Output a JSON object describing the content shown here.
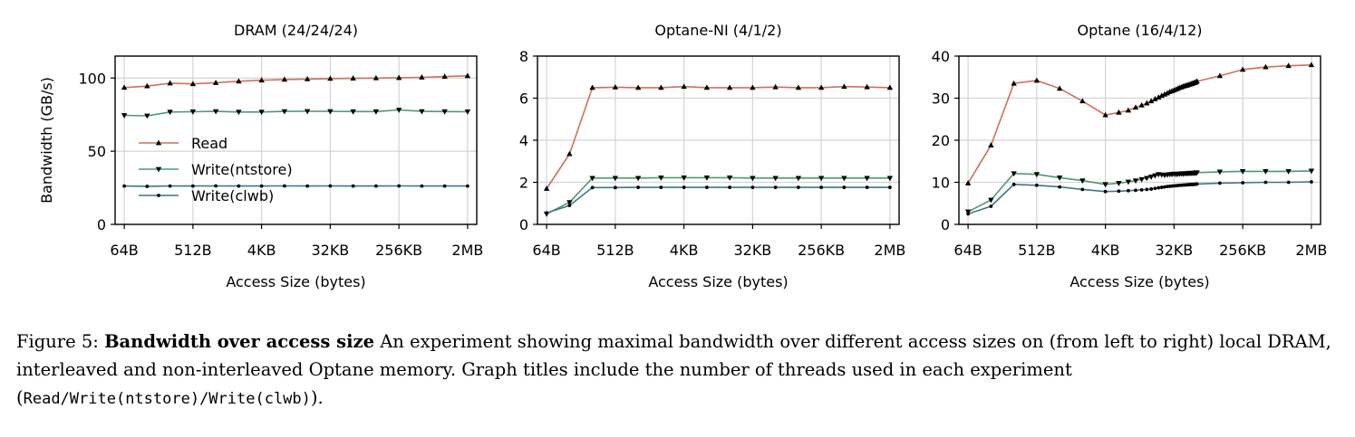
{
  "chart_data": [
    {
      "type": "line",
      "title": "DRAM (24/24/24)",
      "xlabel": "Access Size (bytes)",
      "ylabel": "Bandwidth (GB/s)",
      "x_scale": "log2",
      "x_ticks": [
        "64B",
        "512B",
        "4KB",
        "32KB",
        "256KB",
        "2MB"
      ],
      "ylim": [
        0,
        115
      ],
      "y_ticks": [
        0,
        50,
        100
      ],
      "grid": true,
      "legend": "middle-left",
      "x": [
        "64B",
        "128B",
        "256B",
        "512B",
        "1KB",
        "2KB",
        "4KB",
        "8KB",
        "16KB",
        "32KB",
        "64KB",
        "128KB",
        "256KB",
        "512KB",
        "1MB",
        "2MB"
      ],
      "series": [
        {
          "name": "Read",
          "color": "#d0705a",
          "marker": "triangle-up",
          "values": [
            93.5,
            94.5,
            96.5,
            96,
            96.8,
            97.8,
            98.5,
            99,
            99.3,
            99.6,
            99.8,
            100,
            100.2,
            100.5,
            101,
            101.5
          ]
        },
        {
          "name": "Write(ntstore)",
          "color": "#4e9a6e",
          "marker": "triangle-down",
          "values": [
            74.5,
            74.2,
            76.8,
            77,
            77.2,
            76.8,
            76.8,
            77.2,
            77.3,
            77.2,
            77.1,
            77.1,
            78.2,
            77.2,
            77.1,
            77
          ]
        },
        {
          "name": "Write(clwb)",
          "color": "#3e7787",
          "marker": "circle",
          "values": [
            26.2,
            26,
            26.2,
            26.2,
            26.3,
            26.2,
            26.2,
            26.3,
            26.2,
            26.3,
            26.2,
            26.2,
            26.3,
            26.2,
            26.2,
            26.2
          ]
        }
      ]
    },
    {
      "type": "line",
      "title": "Optane-NI (4/1/2)",
      "xlabel": "Access Size (bytes)",
      "x_scale": "log2",
      "x_ticks": [
        "64B",
        "512B",
        "4KB",
        "32KB",
        "256KB",
        "2MB"
      ],
      "ylim": [
        0,
        8
      ],
      "y_ticks": [
        0,
        2,
        4,
        6,
        8
      ],
      "grid": true,
      "x": [
        "64B",
        "128B",
        "256B",
        "512B",
        "1KB",
        "2KB",
        "4KB",
        "8KB",
        "16KB",
        "32KB",
        "64KB",
        "128KB",
        "256KB",
        "512KB",
        "1MB",
        "2MB"
      ],
      "series": [
        {
          "name": "Read",
          "color": "#d0705a",
          "marker": "triangle-up",
          "values": [
            1.7,
            3.35,
            6.5,
            6.52,
            6.5,
            6.5,
            6.55,
            6.5,
            6.5,
            6.5,
            6.53,
            6.5,
            6.5,
            6.55,
            6.53,
            6.5
          ]
        },
        {
          "name": "Write(ntstore)",
          "color": "#4e9a6e",
          "marker": "triangle-down",
          "values": [
            0.5,
            1.05,
            2.2,
            2.2,
            2.2,
            2.22,
            2.22,
            2.22,
            2.22,
            2.2,
            2.2,
            2.2,
            2.2,
            2.2,
            2.2,
            2.2
          ]
        },
        {
          "name": "Write(clwb)",
          "color": "#3e7787",
          "marker": "circle",
          "values": [
            0.55,
            0.9,
            1.75,
            1.75,
            1.76,
            1.76,
            1.76,
            1.76,
            1.76,
            1.76,
            1.76,
            1.76,
            1.76,
            1.76,
            1.76,
            1.76
          ]
        }
      ]
    },
    {
      "type": "line",
      "title": "Optane (16/4/12)",
      "xlabel": "Access Size (bytes)",
      "x_scale": "log2",
      "x_ticks": [
        "64B",
        "512B",
        "4KB",
        "32KB",
        "256KB",
        "2MB"
      ],
      "ylim": [
        0,
        40
      ],
      "y_ticks": [
        0,
        10,
        20,
        30,
        40
      ],
      "grid": true,
      "x_bytes": [
        64,
        128,
        256,
        512,
        1024,
        2048,
        4096,
        6144,
        8192,
        10240,
        12288,
        14336,
        16384,
        18432,
        20480,
        22528,
        24576,
        26624,
        28672,
        30720,
        32768,
        34816,
        36864,
        38912,
        40960,
        43008,
        45056,
        47104,
        49152,
        51200,
        53248,
        55296,
        57344,
        59392,
        61440,
        63488,
        65536,
        131072,
        262144,
        524288,
        1048576,
        2097152
      ],
      "series": [
        {
          "name": "Read",
          "color": "#d0705a",
          "marker": "triangle-up",
          "values": [
            9.8,
            18.8,
            33.5,
            34.2,
            32.3,
            29.3,
            26,
            26.6,
            27.1,
            27.8,
            28.3,
            28.8,
            29.3,
            29.8,
            30.2,
            30.6,
            30.9,
            31.2,
            31.5,
            31.7,
            31.9,
            32.1,
            32.3,
            32.5,
            32.6,
            32.8,
            32.9,
            33.0,
            33.1,
            33.2,
            33.3,
            33.4,
            33.5,
            33.6,
            33.7,
            33.8,
            34.0,
            35.3,
            36.8,
            37.4,
            37.7,
            37.9
          ]
        },
        {
          "name": "Write(ntstore)",
          "color": "#4e9a6e",
          "marker": "triangle-down",
          "values": [
            3,
            5.8,
            12.1,
            11.9,
            11.1,
            10.4,
            9.5,
            9.8,
            10.1,
            10.4,
            10.7,
            11.0,
            11.3,
            11.6,
            11.9,
            11.8,
            11.7,
            11.8,
            11.9,
            11.9,
            12.0,
            11.9,
            12.0,
            12.0,
            12.1,
            12.0,
            12.1,
            12.1,
            12.1,
            12.2,
            12.1,
            12.2,
            12.2,
            12.2,
            12.2,
            12.3,
            12.3,
            12.5,
            12.6,
            12.6,
            12.6,
            12.7
          ]
        },
        {
          "name": "Write(clwb)",
          "color": "#3e7787",
          "marker": "circle",
          "values": [
            2.5,
            4.3,
            9.5,
            9.3,
            8.9,
            8.3,
            7.8,
            7.9,
            8.0,
            8.1,
            8.2,
            8.3,
            8.4,
            8.55,
            8.7,
            8.8,
            8.9,
            9.0,
            9.05,
            9.1,
            9.15,
            9.2,
            9.25,
            9.3,
            9.3,
            9.35,
            9.35,
            9.4,
            9.4,
            9.45,
            9.45,
            9.5,
            9.5,
            9.5,
            9.55,
            9.55,
            9.6,
            9.8,
            9.9,
            10.0,
            10.0,
            10.1
          ]
        }
      ]
    }
  ],
  "caption": {
    "label": "Figure 5:",
    "title": "Bandwidth over access size",
    "text_1": "An experiment showing maximal bandwidth over different access sizes on (from left to right) local DRAM, interleaved and non-interleaved Optane memory. Graph titles include the number of threads used in each experiment (",
    "code": "Read/Write(ntstore)/Write(clwb)",
    "text_2": ")."
  }
}
